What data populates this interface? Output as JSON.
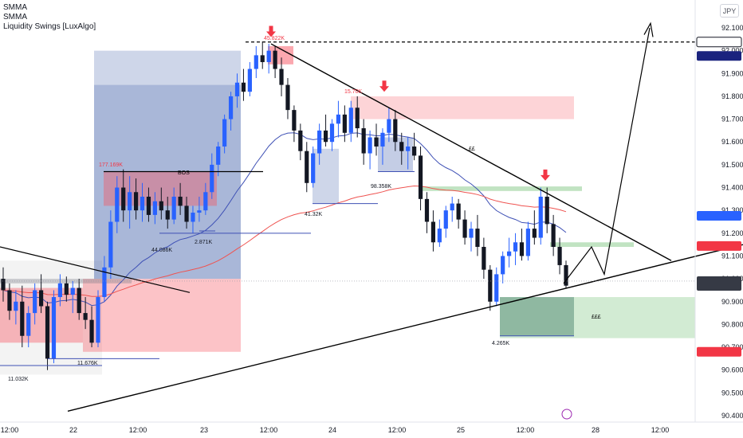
{
  "legend": {
    "indicators": [
      "SMMA",
      "SMMA",
      "Liquidity Swings [LuxAlgo]"
    ]
  },
  "currency": "JPY",
  "colors": {
    "up": "#2962ff",
    "down": "#131722",
    "smma_fast": "#3f51b5",
    "smma_slow": "#ef5350",
    "zone_red": "#f7525f",
    "zone_blue": "#3d5aa8",
    "zone_green": "#4caf50",
    "arrow": "#f23645"
  },
  "chart_data": {
    "type": "candlestick",
    "symbol": "NZDJPY",
    "x_ticks": [
      "12:00",
      "22",
      "12:00",
      "23",
      "12:00",
      "24",
      "12:00",
      "25",
      "12:00",
      "28",
      "12:00"
    ],
    "y_ticks": [
      "92.100",
      "92.000",
      "91.900",
      "91.800",
      "91.700",
      "91.600",
      "91.500",
      "91.400",
      "91.300",
      "91.200",
      "91.100",
      "91.000",
      "90.900",
      "90.800",
      "90.700",
      "90.600",
      "90.500",
      "90.400"
    ],
    "ylim": [
      90.4,
      92.15
    ],
    "price_labels": [
      {
        "name": "level-top",
        "value": 92.038,
        "text": "92.038",
        "style": "outline"
      },
      {
        "name": "smma-top",
        "value": 91.977,
        "text": "91.977",
        "style": "navy"
      },
      {
        "name": "smma-blue",
        "value": 91.276,
        "text": "91.276",
        "style": "blue"
      },
      {
        "name": "smma-red",
        "value": 91.144,
        "text": "91.144",
        "style": "red"
      },
      {
        "name": "symbol",
        "value": 90.99,
        "text": "NZDJPY",
        "style": "dark"
      },
      {
        "name": "last-price",
        "value": 90.969,
        "text": "90.969",
        "style": "dark"
      },
      {
        "name": "low-level",
        "value": 90.68,
        "text": "90.680",
        "style": "red"
      }
    ],
    "annotations": {
      "bos": "BOS",
      "ee": "££",
      "eee": "£££",
      "volume_labels": [
        "11.032K",
        "11.676K",
        "177.169K",
        "44.086K",
        "2.871K",
        "45.822K",
        "15.70K",
        "41.32K",
        "98.358K",
        "4.265K"
      ]
    },
    "candles": [
      [
        91.0,
        91.05,
        90.9,
        90.95
      ],
      [
        90.95,
        90.98,
        90.82,
        90.86
      ],
      [
        90.86,
        90.95,
        90.8,
        90.9
      ],
      [
        90.9,
        90.97,
        90.7,
        90.75
      ],
      [
        90.75,
        90.88,
        90.7,
        90.85
      ],
      [
        90.85,
        90.98,
        90.8,
        90.95
      ],
      [
        90.95,
        91.02,
        90.85,
        90.88
      ],
      [
        90.88,
        90.9,
        90.6,
        90.65
      ],
      [
        90.65,
        90.95,
        90.63,
        90.92
      ],
      [
        90.92,
        91.02,
        90.88,
        90.98
      ],
      [
        90.98,
        91.01,
        90.9,
        90.93
      ],
      [
        90.93,
        90.99,
        90.85,
        90.96
      ],
      [
        90.96,
        91.0,
        90.82,
        90.85
      ],
      [
        90.85,
        90.92,
        90.78,
        90.82
      ],
      [
        90.82,
        90.88,
        90.7,
        90.72
      ],
      [
        90.72,
        90.95,
        90.7,
        90.92
      ],
      [
        90.92,
        91.1,
        90.9,
        91.05
      ],
      [
        91.05,
        91.3,
        91.0,
        91.25
      ],
      [
        91.25,
        91.45,
        91.2,
        91.4
      ],
      [
        91.4,
        91.48,
        91.25,
        91.3
      ],
      [
        91.3,
        91.45,
        91.22,
        91.38
      ],
      [
        91.38,
        91.44,
        91.26,
        91.3
      ],
      [
        91.3,
        91.42,
        91.25,
        91.36
      ],
      [
        91.36,
        91.4,
        91.25,
        91.28
      ],
      [
        91.28,
        91.38,
        91.24,
        91.34
      ],
      [
        91.34,
        91.4,
        91.26,
        91.3
      ],
      [
        91.3,
        91.36,
        91.22,
        91.26
      ],
      [
        91.26,
        91.4,
        91.24,
        91.36
      ],
      [
        91.36,
        91.42,
        91.28,
        91.32
      ],
      [
        91.32,
        91.36,
        91.22,
        91.25
      ],
      [
        91.25,
        91.32,
        91.2,
        91.29
      ],
      [
        91.29,
        91.36,
        91.25,
        91.3
      ],
      [
        91.3,
        91.42,
        91.28,
        91.38
      ],
      [
        91.38,
        91.55,
        91.35,
        91.5
      ],
      [
        91.5,
        91.6,
        91.45,
        91.58
      ],
      [
        91.58,
        91.72,
        91.55,
        91.7
      ],
      [
        91.7,
        91.82,
        91.65,
        91.8
      ],
      [
        91.8,
        91.9,
        91.75,
        91.86
      ],
      [
        91.86,
        91.92,
        91.78,
        91.82
      ],
      [
        91.82,
        91.95,
        91.8,
        91.92
      ],
      [
        91.92,
        92.02,
        91.88,
        91.98
      ],
      [
        91.98,
        92.04,
        91.92,
        91.95
      ],
      [
        91.95,
        92.03,
        91.9,
        92.0
      ],
      [
        92.0,
        92.02,
        91.88,
        91.92
      ],
      [
        91.92,
        91.97,
        91.8,
        91.85
      ],
      [
        91.85,
        91.88,
        91.7,
        91.74
      ],
      [
        91.74,
        91.76,
        91.6,
        91.65
      ],
      [
        91.65,
        91.68,
        91.52,
        91.56
      ],
      [
        91.56,
        91.6,
        91.38,
        91.42
      ],
      [
        91.42,
        91.58,
        91.4,
        91.55
      ],
      [
        91.55,
        91.68,
        91.5,
        91.65
      ],
      [
        91.65,
        91.72,
        91.58,
        91.6
      ],
      [
        91.6,
        91.7,
        91.56,
        91.68
      ],
      [
        91.68,
        91.78,
        91.62,
        91.72
      ],
      [
        91.72,
        91.76,
        91.6,
        91.64
      ],
      [
        91.64,
        91.78,
        91.6,
        91.75
      ],
      [
        91.75,
        91.8,
        91.62,
        91.66
      ],
      [
        91.66,
        91.7,
        91.5,
        91.55
      ],
      [
        91.55,
        91.65,
        91.48,
        91.62
      ],
      [
        91.62,
        91.68,
        91.54,
        91.58
      ],
      [
        91.58,
        91.66,
        91.5,
        91.64
      ],
      [
        91.64,
        91.75,
        91.6,
        91.7
      ],
      [
        91.7,
        91.74,
        91.56,
        91.6
      ],
      [
        91.6,
        91.64,
        91.5,
        91.56
      ],
      [
        91.56,
        91.62,
        91.48,
        91.58
      ],
      [
        91.58,
        91.64,
        91.52,
        91.54
      ],
      [
        91.54,
        91.58,
        91.3,
        91.35
      ],
      [
        91.35,
        91.38,
        91.2,
        91.25
      ],
      [
        91.25,
        91.3,
        91.12,
        91.16
      ],
      [
        91.16,
        91.26,
        91.14,
        91.22
      ],
      [
        91.22,
        91.32,
        91.18,
        91.3
      ],
      [
        91.3,
        91.36,
        91.25,
        91.33
      ],
      [
        91.33,
        91.35,
        91.22,
        91.26
      ],
      [
        91.26,
        91.3,
        91.15,
        91.18
      ],
      [
        91.18,
        91.25,
        91.12,
        91.22
      ],
      [
        91.22,
        91.28,
        91.1,
        91.14
      ],
      [
        91.14,
        91.18,
        91.0,
        91.04
      ],
      [
        91.04,
        91.06,
        90.86,
        90.9
      ],
      [
        90.9,
        91.05,
        90.88,
        91.02
      ],
      [
        91.02,
        91.12,
        90.98,
        91.1
      ],
      [
        91.1,
        91.18,
        91.05,
        91.12
      ],
      [
        91.12,
        91.2,
        91.06,
        91.16
      ],
      [
        91.16,
        91.22,
        91.08,
        91.1
      ],
      [
        91.1,
        91.25,
        91.08,
        91.22
      ],
      [
        91.22,
        91.3,
        91.15,
        91.18
      ],
      [
        91.18,
        91.4,
        91.15,
        91.36
      ],
      [
        91.36,
        91.4,
        91.2,
        91.24
      ],
      [
        91.24,
        91.28,
        91.1,
        91.14
      ],
      [
        91.14,
        91.18,
        91.02,
        91.06
      ],
      [
        91.06,
        91.08,
        90.96,
        90.97
      ]
    ]
  }
}
